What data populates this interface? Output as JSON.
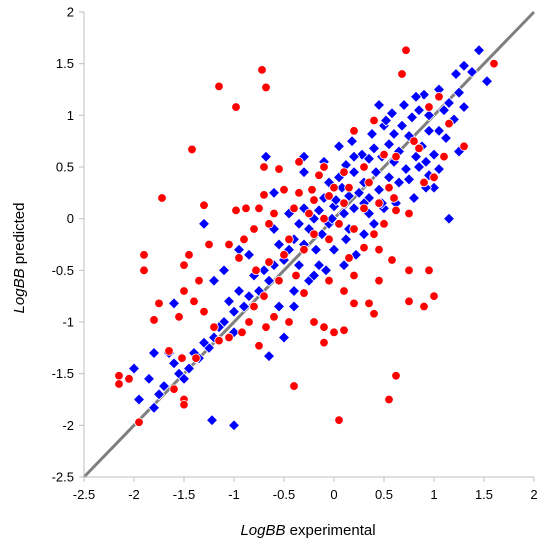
{
  "chart_data": {
    "type": "scatter",
    "xlabel": {
      "italic": "LogBB",
      "rest": " experimental"
    },
    "ylabel": {
      "italic": "LogBB",
      "rest": " predicted"
    },
    "xlim": [
      -2.5,
      2
    ],
    "ylim": [
      -2.5,
      2
    ],
    "xticks": [
      "-2.5",
      "-2",
      "-1.5",
      "-1",
      "-0.5",
      "0",
      "0.5",
      "1",
      "1.5",
      "2"
    ],
    "yticks": [
      "-2.5",
      "-2",
      "-1.5",
      "-1",
      "-0.5",
      "0",
      "0.5",
      "1",
      "1.5",
      "2"
    ],
    "grid": false,
    "identity_line": {
      "from": [
        -2.5,
        -2.5
      ],
      "to": [
        2,
        2
      ],
      "color": "#7f7f7f"
    },
    "series": [
      {
        "marker": "diamond",
        "color": "#0000ff",
        "points": [
          [
            1.45,
            1.63
          ],
          [
            1.38,
            1.42
          ],
          [
            1.53,
            1.33
          ],
          [
            1.3,
            1.48
          ],
          [
            1.22,
            1.4
          ],
          [
            1.05,
            1.25
          ],
          [
            1.25,
            1.22
          ],
          [
            0.9,
            1.2
          ],
          [
            1.1,
            1.05
          ],
          [
            1.15,
            1.12
          ],
          [
            1.3,
            1.08
          ],
          [
            1.2,
            0.96
          ],
          [
            0.95,
            1.0
          ],
          [
            0.85,
            1.05
          ],
          [
            0.78,
            0.98
          ],
          [
            1.05,
            0.85
          ],
          [
            0.95,
            0.85
          ],
          [
            1.12,
            0.78
          ],
          [
            0.88,
            0.7
          ],
          [
            0.75,
            0.8
          ],
          [
            0.68,
            0.9
          ],
          [
            0.6,
            0.82
          ],
          [
            0.5,
            0.9
          ],
          [
            0.55,
            0.72
          ],
          [
            0.65,
            0.65
          ],
          [
            0.82,
            0.6
          ],
          [
            0.92,
            0.55
          ],
          [
            1.0,
            0.62
          ],
          [
            1.05,
            0.48
          ],
          [
            0.95,
            0.42
          ],
          [
            0.85,
            0.5
          ],
          [
            0.72,
            0.48
          ],
          [
            0.6,
            0.55
          ],
          [
            0.48,
            0.6
          ],
          [
            0.4,
            0.68
          ],
          [
            0.35,
            0.58
          ],
          [
            0.42,
            0.45
          ],
          [
            0.55,
            0.4
          ],
          [
            0.65,
            0.35
          ],
          [
            0.75,
            0.38
          ],
          [
            0.3,
            0.35
          ],
          [
            0.2,
            0.45
          ],
          [
            0.12,
            0.52
          ],
          [
            0.05,
            0.4
          ],
          [
            0.25,
            0.25
          ],
          [
            0.15,
            0.22
          ],
          [
            0.35,
            0.2
          ],
          [
            0.45,
            0.28
          ],
          [
            0.08,
            0.3
          ],
          [
            -0.05,
            0.35
          ],
          [
            -0.1,
            0.2
          ],
          [
            0.0,
            0.12
          ],
          [
            0.1,
            0.05
          ],
          [
            0.2,
            0.1
          ],
          [
            -0.15,
            0.08
          ],
          [
            -0.2,
            0.0
          ],
          [
            -0.05,
            -0.05
          ],
          [
            -0.3,
            0.1
          ],
          [
            -0.25,
            -0.1
          ],
          [
            -0.12,
            -0.15
          ],
          [
            -0.35,
            -0.05
          ],
          [
            -0.4,
            -0.2
          ],
          [
            -0.3,
            -0.25
          ],
          [
            -0.18,
            -0.3
          ],
          [
            -0.45,
            -0.3
          ],
          [
            -0.5,
            -0.4
          ],
          [
            -0.55,
            -0.25
          ],
          [
            -0.6,
            -0.45
          ],
          [
            -0.7,
            -0.5
          ],
          [
            -0.65,
            -0.6
          ],
          [
            -0.75,
            -0.7
          ],
          [
            -0.8,
            -0.55
          ],
          [
            -0.85,
            -0.75
          ],
          [
            -0.9,
            -0.85
          ],
          [
            -0.95,
            -0.7
          ],
          [
            -1.0,
            -0.9
          ],
          [
            -1.05,
            -0.8
          ],
          [
            -1.1,
            -1.0
          ],
          [
            -1.0,
            -1.1
          ],
          [
            -1.15,
            -1.05
          ],
          [
            -1.2,
            -1.15
          ],
          [
            -1.25,
            -1.25
          ],
          [
            -1.3,
            -1.2
          ],
          [
            -1.35,
            -1.35
          ],
          [
            -1.4,
            -1.3
          ],
          [
            -1.45,
            -1.45
          ],
          [
            -1.55,
            -1.5
          ],
          [
            -1.6,
            -1.4
          ],
          [
            -1.7,
            -1.62
          ],
          [
            -1.75,
            -1.7
          ],
          [
            -1.85,
            -1.55
          ],
          [
            -1.95,
            -1.75
          ],
          [
            -2.0,
            -1.45
          ],
          [
            -1.8,
            -1.83
          ],
          [
            -0.3,
            0.6
          ],
          [
            -0.3,
            0.45
          ],
          [
            -0.6,
            0.25
          ],
          [
            -0.68,
            0.6
          ],
          [
            -1.3,
            -0.05
          ],
          [
            -1.2,
            -0.6
          ],
          [
            -1.1,
            -0.5
          ],
          [
            -0.95,
            -0.3
          ],
          [
            -0.85,
            -0.35
          ],
          [
            -0.65,
            -1.33
          ],
          [
            -1.0,
            -2.0
          ],
          [
            -1.22,
            -1.95
          ],
          [
            -1.6,
            -0.82
          ],
          [
            -1.8,
            -1.3
          ],
          [
            -1.65,
            -1.3
          ],
          [
            -1.5,
            -1.55
          ],
          [
            1.15,
            0.0
          ],
          [
            1.0,
            0.3
          ],
          [
            0.8,
            0.2
          ],
          [
            0.62,
            0.15
          ],
          [
            0.5,
            0.1
          ],
          [
            0.4,
            -0.05
          ],
          [
            0.3,
            -0.15
          ],
          [
            0.22,
            -0.35
          ],
          [
            0.12,
            -0.2
          ],
          [
            0.0,
            -0.3
          ],
          [
            -0.15,
            -0.45
          ],
          [
            -0.25,
            -0.6
          ],
          [
            -0.4,
            -0.7
          ],
          [
            -0.55,
            -0.85
          ],
          [
            -0.5,
            -1.15
          ],
          [
            -0.4,
            -0.85
          ],
          [
            0.02,
            0.18
          ],
          [
            0.28,
            0.62
          ],
          [
            0.45,
            1.1
          ],
          [
            0.58,
            1.02
          ],
          [
            0.7,
            1.1
          ],
          [
            0.82,
            1.18
          ],
          [
            0.92,
            0.3
          ],
          [
            1.25,
            0.65
          ],
          [
            0.05,
            0.7
          ],
          [
            -0.1,
            0.55
          ],
          [
            0.18,
            0.75
          ],
          [
            0.3,
            0.15
          ],
          [
            -0.02,
            0.0
          ],
          [
            0.15,
            -0.1
          ],
          [
            0.35,
            0.05
          ],
          [
            0.48,
            0.15
          ],
          [
            -0.35,
            -0.45
          ],
          [
            -0.2,
            -0.55
          ],
          [
            -0.08,
            -0.5
          ],
          [
            0.1,
            -0.45
          ],
          [
            -0.6,
            -0.1
          ],
          [
            -0.45,
            0.05
          ],
          [
            0.2,
            0.6
          ],
          [
            0.38,
            0.82
          ],
          [
            0.52,
            0.95
          ]
        ]
      },
      {
        "marker": "circle",
        "color": "#ff0000",
        "points": [
          [
            0.72,
            1.63
          ],
          [
            0.68,
            1.4
          ],
          [
            1.6,
            1.5
          ],
          [
            -1.15,
            1.28
          ],
          [
            -0.98,
            1.08
          ],
          [
            -0.72,
            1.44
          ],
          [
            -0.68,
            1.27
          ],
          [
            -1.42,
            0.67
          ],
          [
            -1.72,
            0.2
          ],
          [
            -0.7,
            0.5
          ],
          [
            -0.55,
            0.48
          ],
          [
            -0.7,
            0.23
          ],
          [
            -0.5,
            0.28
          ],
          [
            -0.22,
            0.28
          ],
          [
            0.2,
            0.85
          ],
          [
            0.4,
            0.95
          ],
          [
            0.5,
            0.62
          ],
          [
            0.62,
            0.6
          ],
          [
            0.3,
            0.5
          ],
          [
            -0.1,
            0.5
          ],
          [
            0.1,
            0.45
          ],
          [
            -0.15,
            0.42
          ],
          [
            0.0,
            0.3
          ],
          [
            0.15,
            0.3
          ],
          [
            0.35,
            0.35
          ],
          [
            0.55,
            0.3
          ],
          [
            0.6,
            0.2
          ],
          [
            0.45,
            0.15
          ],
          [
            0.3,
            0.1
          ],
          [
            0.1,
            0.15
          ],
          [
            -0.05,
            0.22
          ],
          [
            -0.2,
            0.18
          ],
          [
            -0.35,
            0.25
          ],
          [
            -0.4,
            0.1
          ],
          [
            -0.25,
            0.05
          ],
          [
            -0.1,
            0.0
          ],
          [
            0.05,
            -0.05
          ],
          [
            0.2,
            -0.1
          ],
          [
            0.4,
            -0.15
          ],
          [
            0.5,
            -0.05
          ],
          [
            0.62,
            0.08
          ],
          [
            0.75,
            0.05
          ],
          [
            0.9,
            0.35
          ],
          [
            1.0,
            0.4
          ],
          [
            0.85,
            0.68
          ],
          [
            0.8,
            0.75
          ],
          [
            1.1,
            0.6
          ],
          [
            1.15,
            0.92
          ],
          [
            1.3,
            0.7
          ],
          [
            0.95,
            1.08
          ],
          [
            1.05,
            1.18
          ],
          [
            -0.8,
            -0.1
          ],
          [
            -0.65,
            -0.05
          ],
          [
            -0.9,
            -0.2
          ],
          [
            -0.95,
            -0.38
          ],
          [
            -0.78,
            -0.5
          ],
          [
            -0.65,
            -0.42
          ],
          [
            -0.5,
            -0.35
          ],
          [
            -0.38,
            -0.55
          ],
          [
            -0.55,
            -0.6
          ],
          [
            -0.7,
            -0.75
          ],
          [
            -0.8,
            -0.85
          ],
          [
            -0.6,
            -0.95
          ],
          [
            -0.68,
            -1.05
          ],
          [
            -0.85,
            -1.0
          ],
          [
            -0.92,
            -1.1
          ],
          [
            -1.05,
            -1.15
          ],
          [
            -1.15,
            -1.18
          ],
          [
            -1.2,
            -1.05
          ],
          [
            -1.3,
            -0.9
          ],
          [
            -1.4,
            -0.8
          ],
          [
            -1.35,
            -0.6
          ],
          [
            -1.5,
            -0.45
          ],
          [
            -1.5,
            -0.7
          ],
          [
            -1.55,
            -0.95
          ],
          [
            -1.75,
            -0.82
          ],
          [
            -1.9,
            -0.35
          ],
          [
            -1.9,
            -0.5
          ],
          [
            -1.8,
            -0.98
          ],
          [
            -1.65,
            -1.28
          ],
          [
            -1.52,
            -1.35
          ],
          [
            -1.5,
            -1.75
          ],
          [
            -1.5,
            -1.8
          ],
          [
            -1.38,
            -1.35
          ],
          [
            -1.6,
            -1.65
          ],
          [
            -1.95,
            -1.97
          ],
          [
            -2.15,
            -1.52
          ],
          [
            -2.15,
            -1.6
          ],
          [
            -2.05,
            -1.55
          ],
          [
            -0.4,
            -1.62
          ],
          [
            0.05,
            -1.95
          ],
          [
            -0.75,
            -1.23
          ],
          [
            -0.45,
            -1.0
          ],
          [
            -0.2,
            -1.0
          ],
          [
            -0.1,
            -1.05
          ],
          [
            -0.1,
            -1.2
          ],
          [
            0.0,
            -1.1
          ],
          [
            0.1,
            -1.08
          ],
          [
            0.2,
            -0.82
          ],
          [
            0.35,
            -0.82
          ],
          [
            0.4,
            -0.92
          ],
          [
            0.45,
            -0.6
          ],
          [
            0.55,
            -1.75
          ],
          [
            0.62,
            -1.52
          ],
          [
            0.75,
            -0.5
          ],
          [
            0.75,
            -0.8
          ],
          [
            0.9,
            -0.85
          ],
          [
            0.95,
            -0.5
          ],
          [
            1.0,
            -0.75
          ],
          [
            0.45,
            -0.3
          ],
          [
            0.3,
            -0.28
          ],
          [
            0.15,
            -0.38
          ],
          [
            -0.05,
            -0.2
          ],
          [
            -0.3,
            -0.3
          ],
          [
            -0.45,
            -0.2
          ],
          [
            -0.2,
            -0.15
          ],
          [
            -0.6,
            0.05
          ],
          [
            -0.35,
            0.55
          ],
          [
            0.58,
            -0.4
          ],
          [
            0.2,
            -0.55
          ],
          [
            -0.05,
            -0.6
          ],
          [
            -0.3,
            -0.72
          ],
          [
            0.1,
            -0.7
          ],
          [
            -1.3,
            0.13
          ],
          [
            -1.25,
            -0.25
          ],
          [
            -1.45,
            -0.35
          ],
          [
            -0.98,
            0.08
          ],
          [
            -1.05,
            -0.25
          ],
          [
            -0.75,
            0.1
          ],
          [
            -0.88,
            0.1
          ]
        ]
      }
    ]
  }
}
